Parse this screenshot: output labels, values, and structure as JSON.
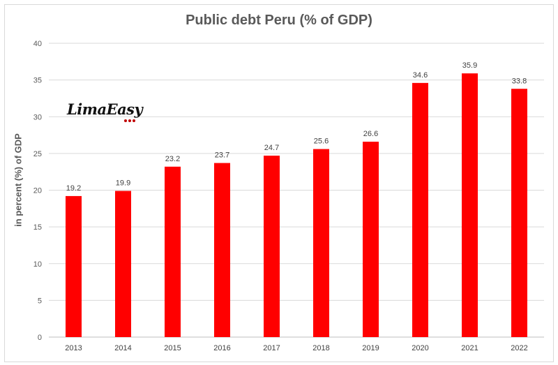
{
  "chart_data": {
    "type": "bar",
    "title": "Public debt Peru (% of GDP)",
    "xlabel": "",
    "ylabel": "in percent (%) of GDP",
    "categories": [
      "2013",
      "2014",
      "2015",
      "2016",
      "2017",
      "2018",
      "2019",
      "2020",
      "2021",
      "2022"
    ],
    "series": [
      {
        "values": [
          19.2,
          19.9,
          23.2,
          23.7,
          24.7,
          25.6,
          26.6,
          34.6,
          35.9,
          33.8
        ]
      }
    ],
    "ylim": [
      0,
      40
    ],
    "yticks": [
      0,
      5,
      10,
      15,
      20,
      25,
      30,
      35,
      40
    ],
    "grid": true,
    "data_labels": true,
    "bar_color": "#ff0000"
  },
  "logo": {
    "text": "LimaEasy"
  }
}
